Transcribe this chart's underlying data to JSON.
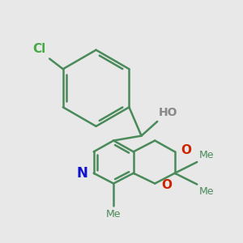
{
  "background_color": "#e8e8e8",
  "bond_color": "#4a8a5a",
  "bond_width": 1.8,
  "cl_label": "Cl",
  "cl_color": "#44aa44",
  "ho_label": "HO",
  "ho_color": "#888888",
  "n_label": "N",
  "n_color": "#1111cc",
  "o_label": "O",
  "o_color": "#cc2200",
  "label_fontsize": 10,
  "figsize": [
    3.0,
    3.0
  ],
  "dpi": 100
}
